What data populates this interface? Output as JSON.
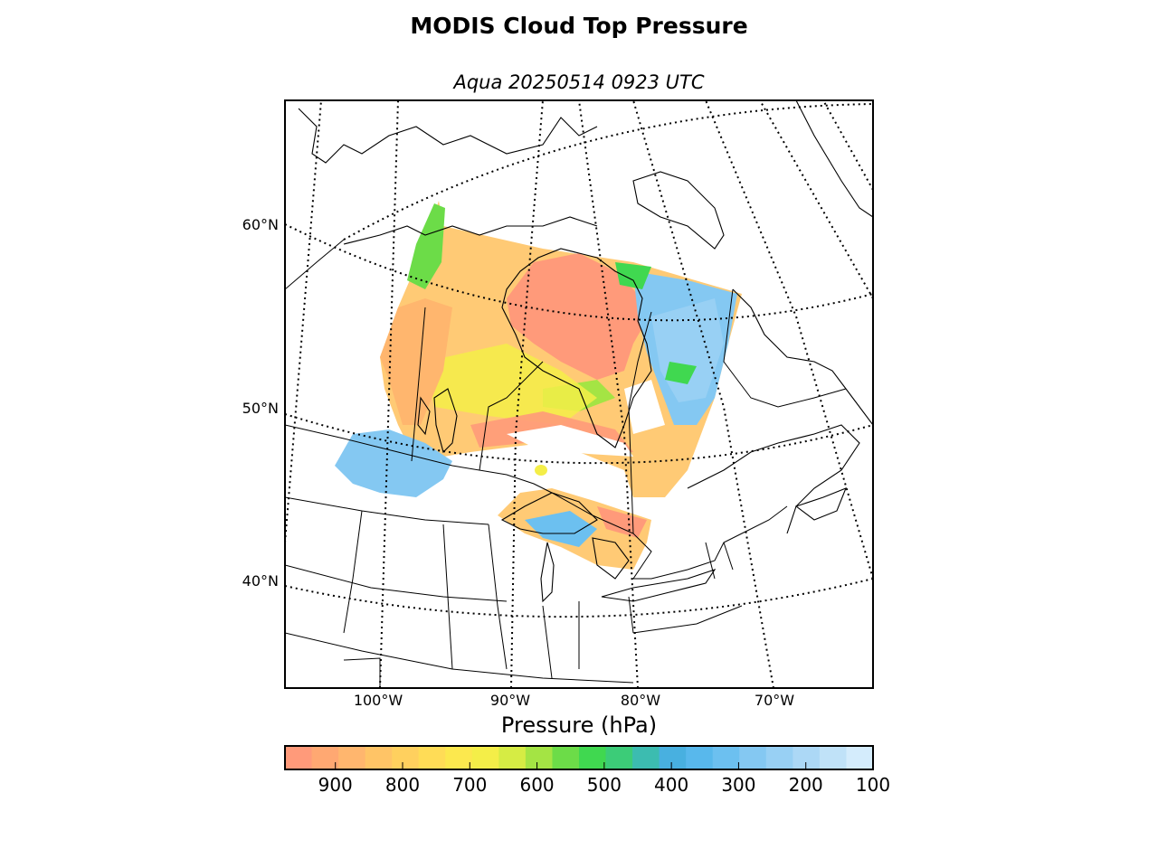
{
  "figure": {
    "title": "MODIS Cloud Top Pressure",
    "subtitle": "Aqua 20250514 0923 UTC"
  },
  "map": {
    "projection": "polar stereographic (North America)",
    "lat_labels": [
      "60°N",
      "50°N",
      "40°N"
    ],
    "lon_labels": [
      "100°W",
      "90°W",
      "80°W",
      "70°W"
    ],
    "graticule_style": "dotted"
  },
  "colorbar": {
    "label": "Pressure (hPa)",
    "ticks": [
      "900",
      "800",
      "700",
      "600",
      "500",
      "400",
      "300",
      "200",
      "100"
    ],
    "range_hpa": [
      975,
      100
    ],
    "colors": [
      "#ff9a7a",
      "#ffa872",
      "#ffb66e",
      "#ffc466",
      "#ffd05e",
      "#ffdc56",
      "#fce84e",
      "#f4ee48",
      "#d6ec44",
      "#a4e444",
      "#6cdc48",
      "#40d850",
      "#3ccc78",
      "#3cbcb0",
      "#48b0e0",
      "#58b8ec",
      "#6cc0f0",
      "#84c8f2",
      "#98d0f4",
      "#acd8f6",
      "#c0e2f8",
      "#d4ecfc"
    ]
  },
  "legend_colors": {
    "low_cloud": "#ff9a7a",
    "mid_low": "#ffc466",
    "mid": "#f4ee48",
    "mid_high": "#6cdc48",
    "high": "#58b8ec",
    "very_high": "#acd8f6"
  }
}
